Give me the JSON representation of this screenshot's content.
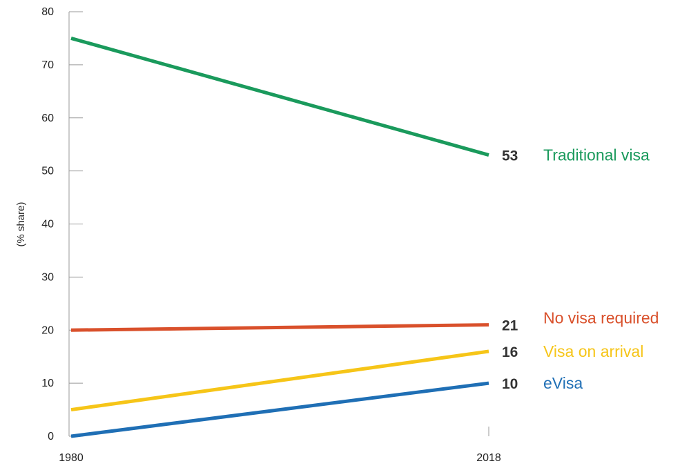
{
  "chart_data": {
    "type": "line",
    "xlabel": "",
    "ylabel": "(% share)",
    "x": [
      "1980",
      "2018"
    ],
    "ylim": [
      0,
      80
    ],
    "y_ticks": [
      "0",
      "10",
      "20",
      "30",
      "40",
      "50",
      "60",
      "70",
      "80"
    ],
    "grid": false,
    "legend": "direct labels at right end of lines",
    "series": [
      {
        "name": "Traditional visa",
        "values": [
          75,
          53
        ],
        "end_label": "53",
        "color": "#1a9a5c"
      },
      {
        "name": "No visa required",
        "values": [
          20,
          21
        ],
        "end_label": "21",
        "color": "#d9502b"
      },
      {
        "name": "Visa on arrival",
        "values": [
          5,
          16
        ],
        "end_label": "16",
        "color": "#f6c518"
      },
      {
        "name": "eVisa",
        "values": [
          0,
          10
        ],
        "end_label": "10",
        "color": "#1f6fb5"
      }
    ]
  }
}
